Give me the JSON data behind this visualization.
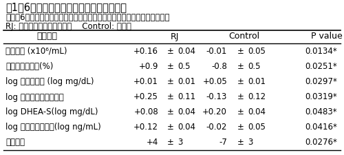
{
  "title": "表1．6か月飲用後の各種検査結果の変化量",
  "subtitle1": "数値は6か月飲用後の検査値から飲用開始前の検査値を引いた変化量を表す",
  "subtitle2": "RJ: ローヤルゼリー摂取群，    Control: 対照群",
  "rows": [
    [
      "赤血球数 (x10⁶/mL)",
      "+0.16",
      "±",
      "0.04",
      "-0.01",
      "±",
      "0.05",
      "0.0134*"
    ],
    [
      "ヘマトクリット(%)",
      "+0.9",
      "±",
      "0.5",
      "-0.8",
      "±",
      "0.5",
      "0.0251*"
    ],
    [
      "log 空腹時血糖 (log mg/dL)",
      "+0.01",
      "±",
      "0.01",
      "+0.05",
      "±",
      "0.01",
      "0.0297*"
    ],
    [
      "log インスリン分泌指数",
      "+0.25",
      "±",
      "0.11",
      "-0.13",
      "±",
      "0.12",
      "0.0319*"
    ],
    [
      "log DHEA-S(log mg/dL)",
      "+0.08",
      "±",
      "0.04",
      "+0.20",
      "±",
      "0.04",
      "0.0483*"
    ],
    [
      "log テストステロン(log ng/mL)",
      "+0.12",
      "±",
      "0.04",
      "-0.02",
      "±",
      "0.05",
      "0.0416*"
    ],
    [
      "心の健康",
      "+4",
      "±",
      "3",
      "-7",
      "±",
      "3",
      "0.0276*"
    ]
  ],
  "bg_color": "#ffffff",
  "line_color": "#000000",
  "text_color": "#000000",
  "fs_title": 10.5,
  "fs_sub": 8.5,
  "fs_header": 9.0,
  "fs_cell": 8.5
}
